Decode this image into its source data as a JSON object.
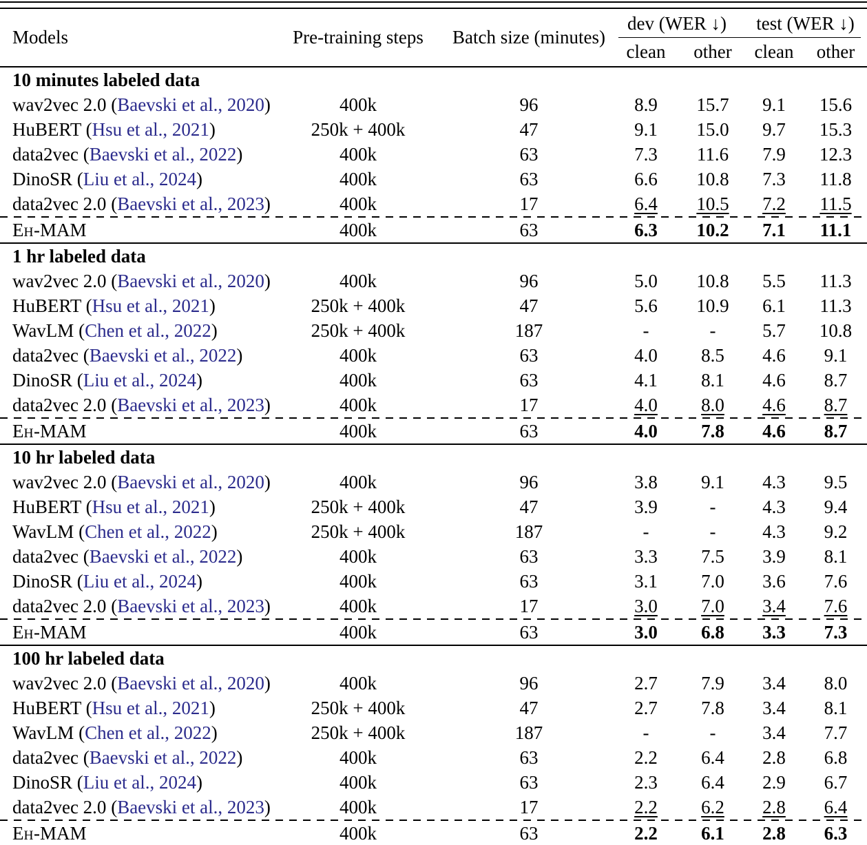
{
  "page": {
    "citation_color": "#2b2b8c"
  },
  "header": {
    "models": "Models",
    "pretraining": "Pre-training steps",
    "batch": "Batch size (minutes)",
    "dev_group": "dev (WER ↓)",
    "test_group": "test (WER ↓)",
    "subcols": [
      "clean",
      "other",
      "clean",
      "other"
    ]
  },
  "sections": [
    {
      "title": "10 minutes labeled data",
      "rows": [
        {
          "model": "wav2vec 2.0",
          "cite": "Baevski et al., 2020",
          "steps": "400k",
          "batch": "96",
          "wer": [
            "8.9",
            "15.7",
            "9.1",
            "15.6"
          ]
        },
        {
          "model": "HuBERT",
          "cite": "Hsu et al., 2021",
          "steps": "250k + 400k",
          "batch": "47",
          "wer": [
            "9.1",
            "15.0",
            "9.7",
            "15.3"
          ]
        },
        {
          "model": "data2vec",
          "cite": "Baevski et al., 2022",
          "steps": "400k",
          "batch": "63",
          "wer": [
            "7.3",
            "11.6",
            "7.9",
            "12.3"
          ]
        },
        {
          "model": "DinoSR",
          "cite": "Liu et al., 2024",
          "steps": "400k",
          "batch": "63",
          "wer": [
            "6.6",
            "10.8",
            "7.3",
            "11.8"
          ]
        },
        {
          "model": "data2vec 2.0",
          "cite": "Baevski et al., 2023",
          "steps": "400k",
          "batch": "17",
          "wer": [
            "6.4",
            "10.5",
            "7.2",
            "11.5"
          ],
          "underline": true
        },
        {
          "model": "EH-MAM",
          "sc": true,
          "steps": "400k",
          "batch": "63",
          "wer": [
            "6.3",
            "10.2",
            "7.1",
            "11.1"
          ],
          "bold": true,
          "dashed_before": true
        }
      ]
    },
    {
      "title": "1 hr labeled data",
      "rows": [
        {
          "model": "wav2vec 2.0",
          "cite": "Baevski et al., 2020",
          "steps": "400k",
          "batch": "96",
          "wer": [
            "5.0",
            "10.8",
            "5.5",
            "11.3"
          ]
        },
        {
          "model": "HuBERT",
          "cite": "Hsu et al., 2021",
          "steps": "250k + 400k",
          "batch": "47",
          "wer": [
            "5.6",
            "10.9",
            "6.1",
            "11.3"
          ]
        },
        {
          "model": "WavLM",
          "cite": "Chen et al., 2022",
          "steps": "250k + 400k",
          "batch": "187",
          "wer": [
            "-",
            "-",
            "5.7",
            "10.8"
          ]
        },
        {
          "model": "data2vec",
          "cite": "Baevski et al., 2022",
          "steps": "400k",
          "batch": "63",
          "wer": [
            "4.0",
            "8.5",
            "4.6",
            "9.1"
          ]
        },
        {
          "model": "DinoSR",
          "cite": "Liu et al., 2024",
          "steps": "400k",
          "batch": "63",
          "wer": [
            "4.1",
            "8.1",
            "4.6",
            "8.7"
          ]
        },
        {
          "model": "data2vec 2.0",
          "cite": "Baevski et al., 2023",
          "steps": "400k",
          "batch": "17",
          "wer": [
            "4.0",
            "8.0",
            "4.6",
            "8.7"
          ],
          "underline": true
        },
        {
          "model": "EH-MAM",
          "sc": true,
          "steps": "400k",
          "batch": "63",
          "wer": [
            "4.0",
            "7.8",
            "4.6",
            "8.7"
          ],
          "bold": true,
          "dashed_before": true
        }
      ]
    },
    {
      "title": "10 hr labeled data",
      "rows": [
        {
          "model": "wav2vec 2.0",
          "cite": "Baevski et al., 2020",
          "steps": "400k",
          "batch": "96",
          "wer": [
            "3.8",
            "9.1",
            "4.3",
            "9.5"
          ]
        },
        {
          "model": "HuBERT",
          "cite": "Hsu et al., 2021",
          "steps": "250k + 400k",
          "batch": "47",
          "wer": [
            "3.9",
            "-",
            "4.3",
            "9.4"
          ]
        },
        {
          "model": "WavLM",
          "cite": "Chen et al., 2022",
          "steps": "250k + 400k",
          "batch": "187",
          "wer": [
            "-",
            "-",
            "4.3",
            "9.2"
          ]
        },
        {
          "model": "data2vec",
          "cite": "Baevski et al., 2022",
          "steps": "400k",
          "batch": "63",
          "wer": [
            "3.3",
            "7.5",
            "3.9",
            "8.1"
          ]
        },
        {
          "model": "DinoSR",
          "cite": "Liu et al., 2024",
          "steps": "400k",
          "batch": "63",
          "wer": [
            "3.1",
            "7.0",
            "3.6",
            "7.6"
          ]
        },
        {
          "model": "data2vec 2.0",
          "cite": "Baevski et al., 2023",
          "steps": "400k",
          "batch": "17",
          "wer": [
            "3.0",
            "7.0",
            "3.4",
            "7.6"
          ],
          "underline": true
        },
        {
          "model": "EH-MAM",
          "sc": true,
          "steps": "400k",
          "batch": "63",
          "wer": [
            "3.0",
            "6.8",
            "3.3",
            "7.3"
          ],
          "bold": true,
          "dashed_before": true
        }
      ]
    },
    {
      "title": "100 hr labeled data",
      "rows": [
        {
          "model": "wav2vec 2.0",
          "cite": "Baevski et al., 2020",
          "steps": "400k",
          "batch": "96",
          "wer": [
            "2.7",
            "7.9",
            "3.4",
            "8.0"
          ]
        },
        {
          "model": "HuBERT",
          "cite": "Hsu et al., 2021",
          "steps": "250k + 400k",
          "batch": "47",
          "wer": [
            "2.7",
            "7.8",
            "3.4",
            "8.1"
          ]
        },
        {
          "model": "WavLM",
          "cite": "Chen et al., 2022",
          "steps": "250k + 400k",
          "batch": "187",
          "wer": [
            "-",
            "-",
            "3.4",
            "7.7"
          ]
        },
        {
          "model": "data2vec",
          "cite": "Baevski et al., 2022",
          "steps": "400k",
          "batch": "63",
          "wer": [
            "2.2",
            "6.4",
            "2.8",
            "6.8"
          ]
        },
        {
          "model": "DinoSR",
          "cite": "Liu et al., 2024",
          "steps": "400k",
          "batch": "63",
          "wer": [
            "2.3",
            "6.4",
            "2.9",
            "6.7"
          ]
        },
        {
          "model": "data2vec 2.0",
          "cite": "Baevski et al., 2023",
          "steps": "400k",
          "batch": "17",
          "wer": [
            "2.2",
            "6.2",
            "2.8",
            "6.4"
          ],
          "underline": true
        },
        {
          "model": "EH-MAM",
          "sc": true,
          "steps": "400k",
          "batch": "63",
          "wer": [
            "2.2",
            "6.1",
            "2.8",
            "6.3"
          ],
          "bold": true,
          "dashed_before": true
        }
      ]
    }
  ]
}
